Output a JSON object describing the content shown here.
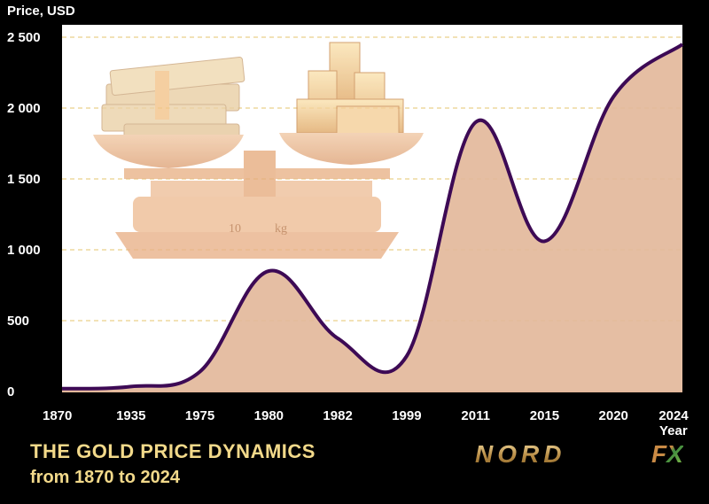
{
  "chart_data": {
    "type": "area",
    "title": "THE GOLD PRICE DYNAMICS",
    "subtitle": "from 1870 to 2024",
    "ylabel": "Price, USD",
    "xlabel": "Year",
    "ylim": [
      0,
      2500
    ],
    "yticks": [
      0,
      500,
      1000,
      1500,
      2000,
      2500
    ],
    "ytick_labels": [
      "0",
      "500",
      "1 000",
      "1 500",
      "2 000",
      "2 500"
    ],
    "categories": [
      "1870",
      "1935",
      "1975",
      "1980",
      "1982",
      "1999",
      "2011",
      "2015",
      "2020",
      "2024"
    ],
    "values": [
      20,
      35,
      140,
      850,
      375,
      250,
      1900,
      1060,
      2080,
      2450
    ],
    "grid": true,
    "colors": {
      "background": "#000000",
      "plot_area": "#ffffff",
      "area_fill": "#e3b89b",
      "line": "#3d0a55",
      "grid": "#e6c66c",
      "title": "#f2d98a"
    }
  },
  "logo": {
    "text": "NORD",
    "accent": "FX"
  }
}
